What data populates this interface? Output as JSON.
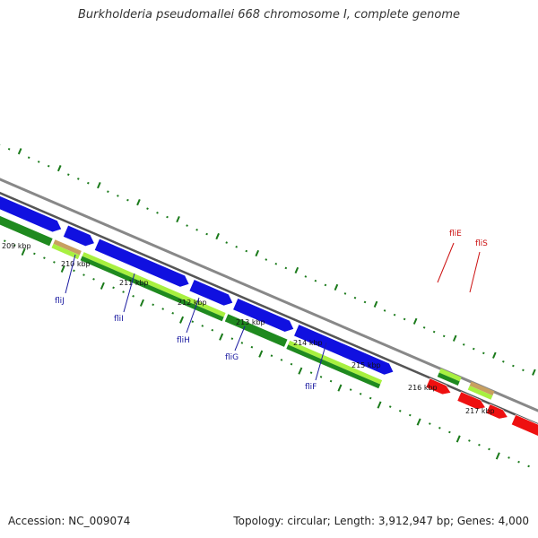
{
  "title": "Burkholderia pseudomallei 668 chromosome I, complete genome",
  "footer": {
    "accession": "Accession: NC_009074",
    "summary": "Topology: circular; Length: 3,912,947 bp; Genes: 4,000"
  },
  "colors": {
    "backbone": "#888888",
    "forward_cds": "#1010e0",
    "reverse_cds_dark": "#1f8a1f",
    "reverse_cds_light": "#a8f040",
    "other_gene": "#ee1010",
    "forward_label": "#1a1aa0",
    "other_label": "#cc1111",
    "tick": "#1a7a1a"
  },
  "ticks": [
    {
      "label": "209 kbp"
    },
    {
      "label": "210 kbp"
    },
    {
      "label": "211 kbp"
    },
    {
      "label": "212 kbp"
    },
    {
      "label": "213 kbp"
    },
    {
      "label": "214 kbp"
    },
    {
      "label": "215 kbp"
    },
    {
      "label": "216 kbp"
    },
    {
      "label": "217 kbp"
    }
  ],
  "gene_labels": [
    {
      "name": "fliJ",
      "color_key": "forward_label"
    },
    {
      "name": "fliI",
      "color_key": "forward_label"
    },
    {
      "name": "fliH",
      "color_key": "forward_label"
    },
    {
      "name": "fliG",
      "color_key": "forward_label"
    },
    {
      "name": "fliF",
      "color_key": "forward_label"
    },
    {
      "name": "fliE",
      "color_key": "other_label"
    },
    {
      "name": "fliS",
      "color_key": "other_label"
    }
  ]
}
